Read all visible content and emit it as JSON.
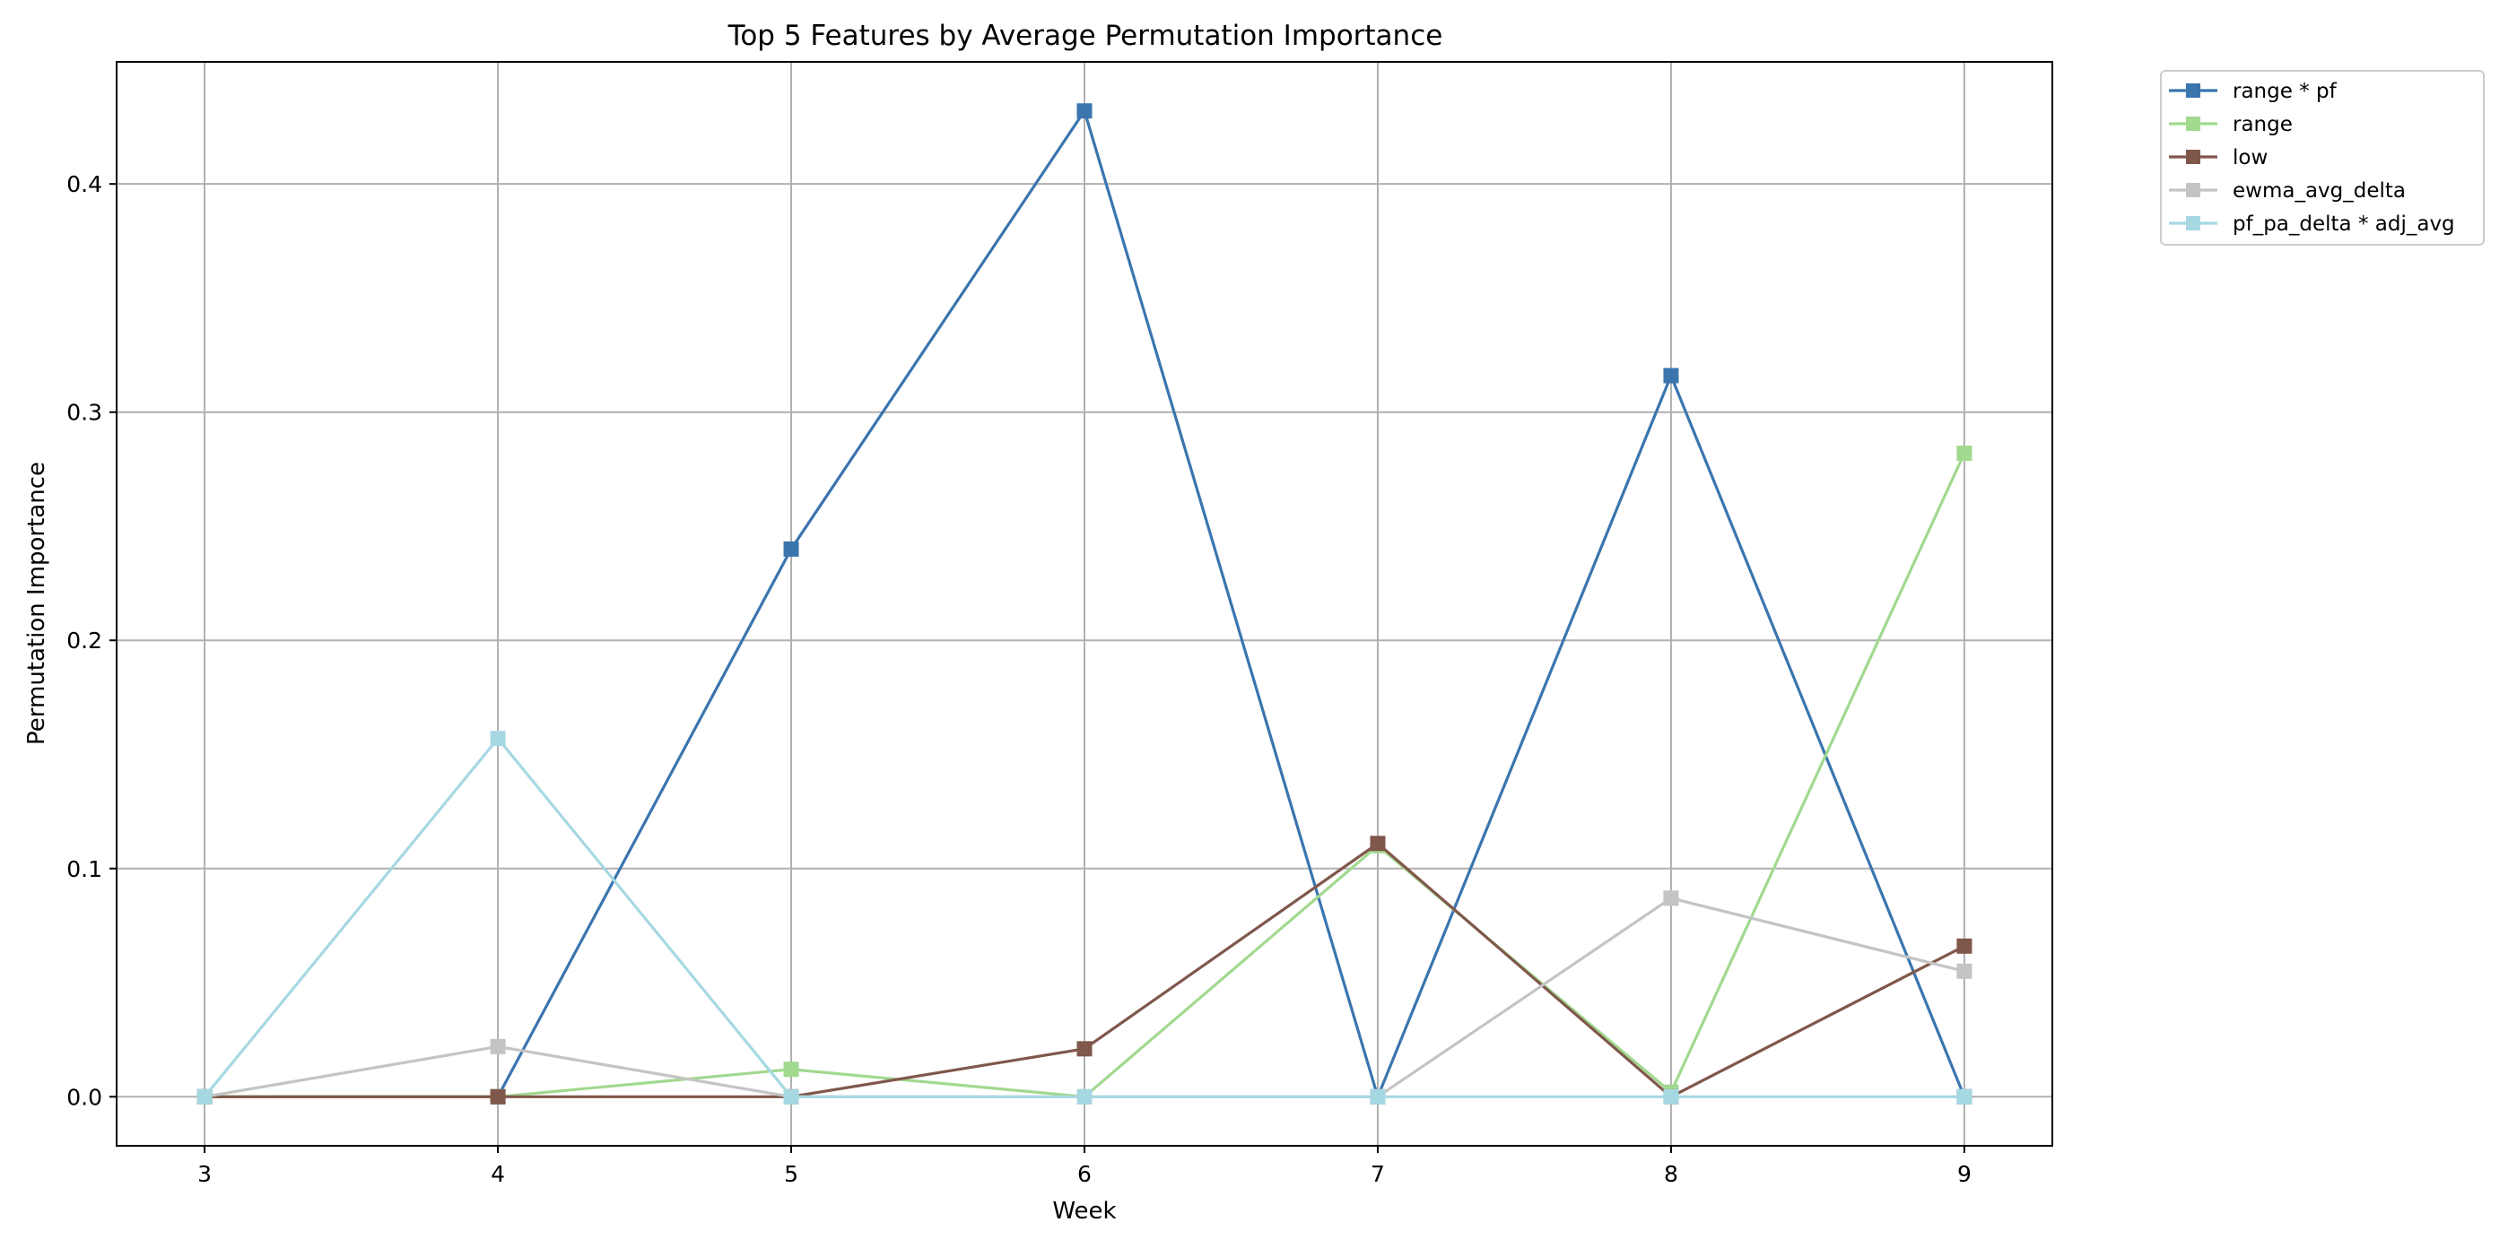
{
  "chart_data": {
    "type": "line",
    "title": "Top 5 Features by Average Permutation Importance",
    "xlabel": "Week",
    "ylabel": "Permutation Importance",
    "x": [
      3,
      4,
      5,
      6,
      7,
      8,
      9
    ],
    "xlim": [
      2.7,
      9.3
    ],
    "ylim": [
      -0.0215,
      0.4535
    ],
    "xticks": [
      "3",
      "4",
      "5",
      "6",
      "7",
      "8",
      "9"
    ],
    "yticks": [
      {
        "value": 0.0,
        "label": "0.0"
      },
      {
        "value": 0.1,
        "label": "0.1"
      },
      {
        "value": 0.2,
        "label": "0.2"
      },
      {
        "value": 0.3,
        "label": "0.3"
      },
      {
        "value": 0.4,
        "label": "0.4"
      }
    ],
    "grid": true,
    "marker": "square",
    "legend_position": "outside-top-right",
    "series": [
      {
        "name": "range * pf",
        "color": "#3a75ae",
        "values": [
          0.0,
          0.0,
          0.24,
          0.432,
          0.0,
          0.316,
          0.0
        ]
      },
      {
        "name": "range",
        "color": "#a1d98f",
        "values": [
          0.0,
          0.0,
          0.012,
          0.0,
          0.11,
          0.002,
          0.282
        ]
      },
      {
        "name": "low",
        "color": "#80574b",
        "values": [
          0.0,
          0.0,
          0.0,
          0.021,
          0.111,
          0.0,
          0.066
        ]
      },
      {
        "name": "ewma_avg_delta",
        "color": "#c4c4c4",
        "values": [
          0.0,
          0.022,
          0.0,
          0.0,
          0.0,
          0.087,
          0.055
        ]
      },
      {
        "name": "pf_pa_delta * adj_avg",
        "color": "#a6d8e2",
        "values": [
          0.0,
          0.157,
          0.0,
          0.0,
          0.0,
          0.0,
          0.0
        ]
      }
    ]
  }
}
